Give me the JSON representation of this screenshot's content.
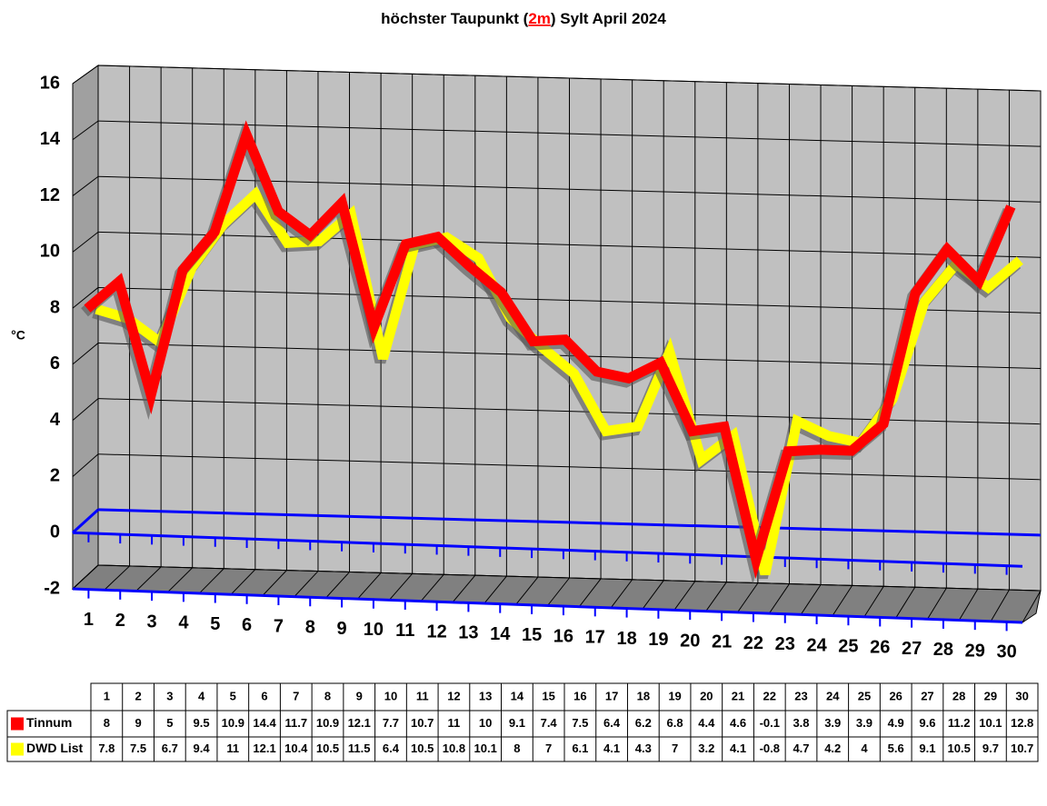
{
  "chart_data": {
    "type": "line3d",
    "title_parts": [
      "höchster Taupunkt (",
      "2m",
      ") Sylt April 2024"
    ],
    "ylabel": "°C",
    "categories": [
      "1",
      "2",
      "3",
      "4",
      "5",
      "6",
      "7",
      "8",
      "9",
      "10",
      "11",
      "12",
      "13",
      "14",
      "15",
      "16",
      "17",
      "18",
      "19",
      "20",
      "21",
      "22",
      "23",
      "24",
      "25",
      "26",
      "27",
      "28",
      "29",
      "30"
    ],
    "ylim": [
      -2,
      16
    ],
    "yticks": [
      -2,
      0,
      2,
      4,
      6,
      8,
      10,
      12,
      14,
      16
    ],
    "grid": true,
    "series": [
      {
        "name": "Tinnum",
        "color": "#ff0000",
        "values": [
          8,
          9,
          5,
          9.5,
          10.9,
          14.4,
          11.7,
          10.9,
          12.1,
          7.7,
          10.7,
          11,
          10,
          9.1,
          7.4,
          7.5,
          6.4,
          6.2,
          6.8,
          4.4,
          4.6,
          -0.1,
          3.8,
          3.9,
          3.9,
          4.9,
          9.6,
          11.2,
          10.1,
          12.8
        ]
      },
      {
        "name": "DWD List",
        "color": "#ffff00",
        "values": [
          7.8,
          7.5,
          6.7,
          9.4,
          11,
          12.1,
          10.4,
          10.5,
          11.5,
          6.4,
          10.5,
          10.8,
          10.1,
          8,
          7,
          6.1,
          4.1,
          4.3,
          7,
          3.2,
          4.1,
          -0.8,
          4.7,
          4.2,
          4,
          5.6,
          9.1,
          10.5,
          9.7,
          10.7
        ]
      }
    ]
  }
}
